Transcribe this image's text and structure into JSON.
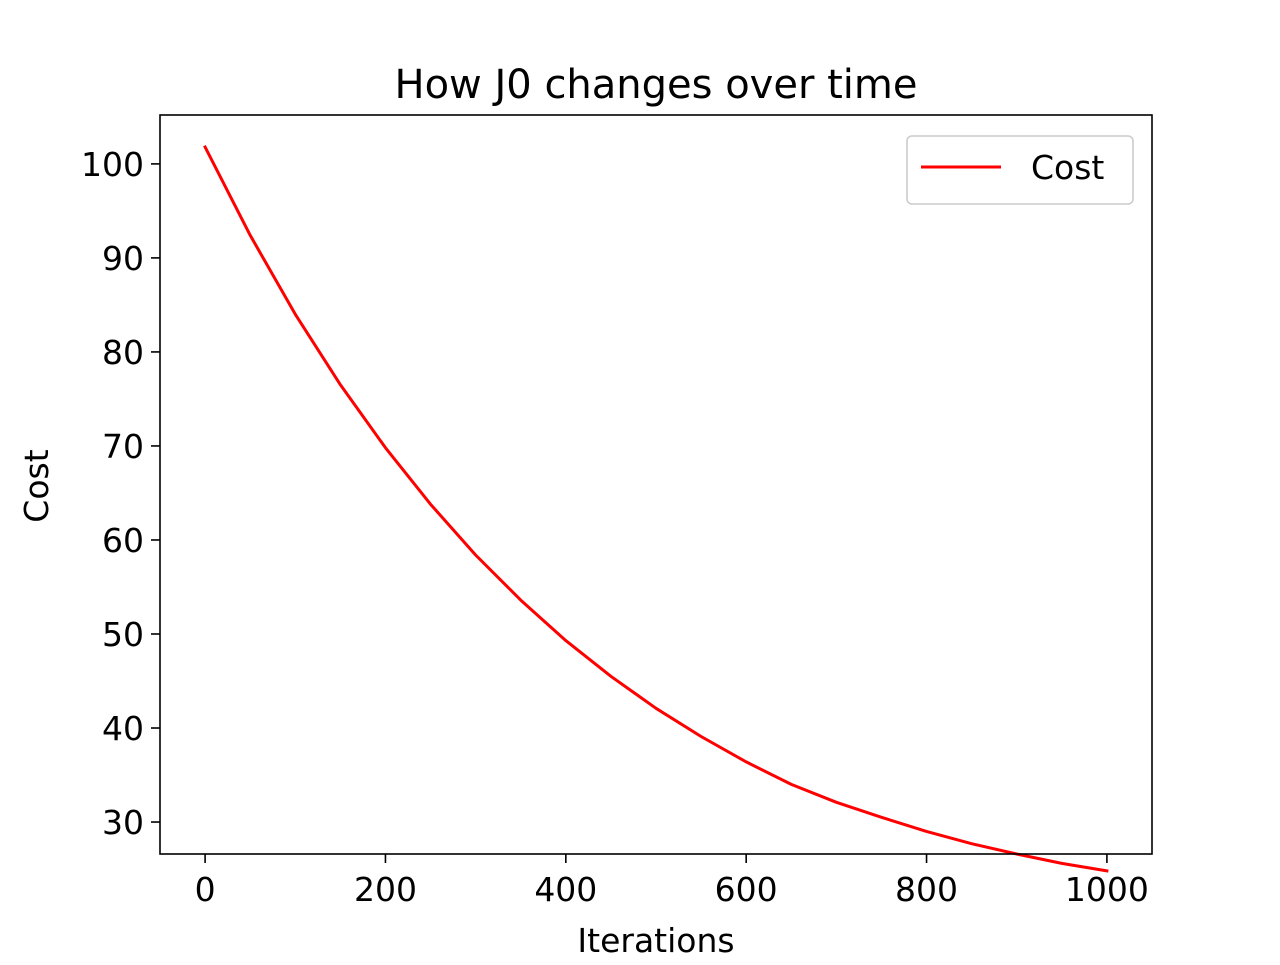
{
  "chart_data": {
    "type": "line",
    "title": "How J0 changes over time",
    "xlabel": "Iterations",
    "ylabel": "Cost",
    "xlim": [
      -50,
      1050
    ],
    "ylim": [
      26.6,
      105.2
    ],
    "xticks": [
      0,
      200,
      400,
      600,
      800,
      1000
    ],
    "yticks": [
      30,
      40,
      50,
      60,
      70,
      80,
      90,
      100
    ],
    "grid": false,
    "legend": {
      "position": "upper right",
      "entries": [
        "Cost"
      ]
    },
    "series": [
      {
        "name": "Cost",
        "color": "#ff0000",
        "x": [
          0,
          50,
          100,
          150,
          200,
          250,
          300,
          350,
          400,
          450,
          500,
          550,
          600,
          650,
          700,
          750,
          800,
          850,
          900,
          950,
          1000
        ],
        "y": [
          101.8,
          92.4,
          84.0,
          76.5,
          69.8,
          63.8,
          58.4,
          53.6,
          49.3,
          45.5,
          42.1,
          39.1,
          36.4,
          34.0,
          32.1,
          30.5,
          29.0,
          27.7,
          26.6,
          25.6,
          24.8
        ]
      }
    ]
  }
}
